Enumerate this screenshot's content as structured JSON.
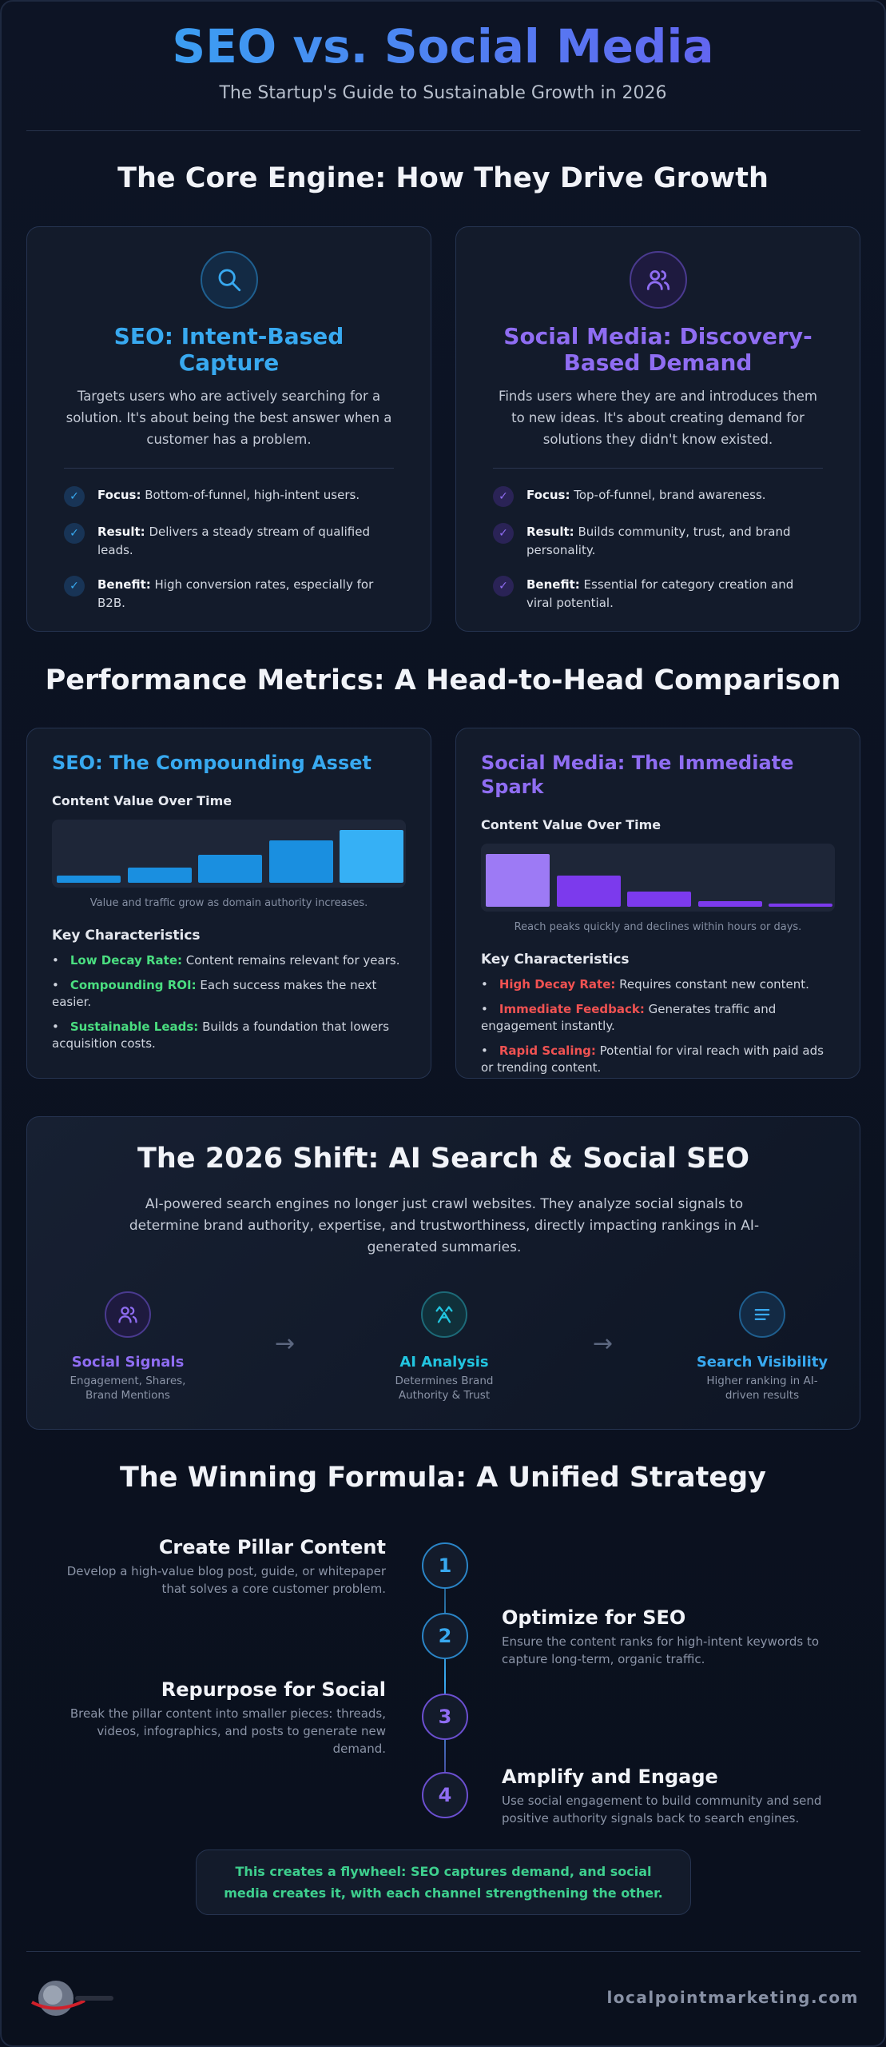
{
  "header": {
    "title": "SEO vs. Social Media",
    "subtitle": "The Startup's Guide to Sustainable Growth in 2026"
  },
  "core": {
    "heading": "The Core Engine: How They Drive Growth",
    "cards": [
      {
        "title": "SEO: Intent-Based Capture",
        "description": "Targets users who are actively searching for a solution. It's about being the best answer when a customer has a problem.",
        "points": [
          {
            "label": "Focus:",
            "text": "Bottom-of-funnel, high-intent users."
          },
          {
            "label": "Result:",
            "text": "Delivers a steady stream of qualified leads."
          },
          {
            "label": "Benefit:",
            "text": "High conversion rates, especially for B2B."
          }
        ]
      },
      {
        "title": "Social Media: Discovery-Based Demand",
        "description": "Finds users where they are and introduces them to new ideas. It's about creating demand for solutions they didn't know existed.",
        "points": [
          {
            "label": "Focus:",
            "text": "Top-of-funnel, brand awareness."
          },
          {
            "label": "Result:",
            "text": "Builds community, trust, and brand personality."
          },
          {
            "label": "Benefit:",
            "text": "Essential for category creation and viral potential."
          }
        ]
      }
    ]
  },
  "metrics": {
    "heading": "Performance Metrics: A Head-to-Head Comparison",
    "cards": [
      {
        "title": "SEO: The Compounding Asset",
        "chart_title": "Content Value Over Time",
        "chart_caption": "Value and traffic grow as domain authority increases.",
        "list_title": "Key Characteristics",
        "points": [
          {
            "label": "Low Decay Rate:",
            "text": "Content remains relevant for years."
          },
          {
            "label": "Compounding ROI:",
            "text": "Each success makes the next easier."
          },
          {
            "label": "Sustainable Leads:",
            "text": "Builds a foundation that lowers acquisition costs."
          }
        ]
      },
      {
        "title": "Social Media: The Immediate Spark",
        "chart_title": "Content Value Over Time",
        "chart_caption": "Reach peaks quickly and declines within hours or days.",
        "list_title": "Key Characteristics",
        "points": [
          {
            "label": "High Decay Rate:",
            "text": "Requires constant new content."
          },
          {
            "label": "Immediate Feedback:",
            "text": "Generates traffic and engagement instantly."
          },
          {
            "label": "Rapid Scaling:",
            "text": "Potential for viral reach with paid ads or trending content."
          }
        ]
      }
    ]
  },
  "shift": {
    "heading": "The 2026 Shift: AI Search & Social SEO",
    "description": "AI-powered search engines no longer just crawl websites. They analyze social signals to determine brand authority, expertise, and trustworthiness, directly impacting rankings in AI-generated summaries.",
    "steps": [
      {
        "title": "Social Signals",
        "subtitle": "Engagement, Shares, Brand Mentions"
      },
      {
        "title": "AI Analysis",
        "subtitle": "Determines Brand Authority & Trust"
      },
      {
        "title": "Search Visibility",
        "subtitle": "Higher ranking in AI-driven results"
      }
    ]
  },
  "formula": {
    "heading": "The Winning Formula: A Unified Strategy",
    "steps": [
      {
        "number": 1,
        "title": "Create Pillar Content",
        "description": "Develop a high-value blog post, guide, or whitepaper that solves a core customer problem."
      },
      {
        "number": 2,
        "title": "Optimize for SEO",
        "description": "Ensure the content ranks for high-intent keywords to capture long-term, organic traffic."
      },
      {
        "number": 3,
        "title": "Repurpose for Social",
        "description": "Break the pillar content into smaller pieces: threads, videos, infographics, and posts to generate new demand."
      },
      {
        "number": 4,
        "title": "Amplify and Engage",
        "description": "Use social engagement to build community and send positive authority signals back to search engines."
      }
    ],
    "note": "This creates a flywheel: SEO captures demand, and social media creates it, with each channel strengthening the other."
  },
  "footer": {
    "site": "localpointmarketing.com"
  }
}
